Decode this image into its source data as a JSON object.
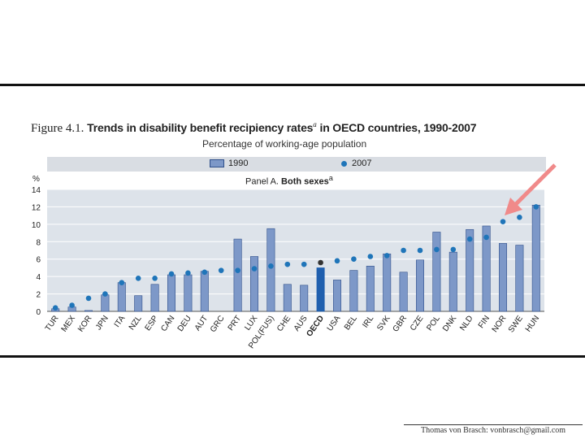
{
  "figure": {
    "label": "Figure 4.1.",
    "title": "Trends in disability benefit recipiency rates",
    "title_note": "a",
    "title_suffix": "in OECD countries, 1990-2007",
    "subtitle": "Percentage of working-age population"
  },
  "legend": {
    "series_1990": "1990",
    "series_2007": "2007"
  },
  "panel": {
    "prefix": "Panel A.",
    "name": "Both sexes",
    "note": "a"
  },
  "axis": {
    "unit": "%"
  },
  "footer": {
    "credit": "Thomas von Brasch: vonbrasch@gmail.com"
  },
  "colors": {
    "bar_1990": "#7d98c8",
    "bar_1990_border": "#2f4f8a",
    "bar_oecd": "#1f5fae",
    "dot_2007": "#1f75b9",
    "dot_oecd": "#333333",
    "plot_bg": "#dde3ea",
    "highlight_arrow": "#f08a8a"
  },
  "chart_data": {
    "type": "bar",
    "title": "Trends in disability benefit recipiency rates in OECD countries, 1990-2007",
    "ylabel": "%",
    "ylim": [
      0,
      14
    ],
    "yticks": [
      0,
      2,
      4,
      6,
      8,
      10,
      12,
      14
    ],
    "grid": true,
    "categories": [
      "TUR",
      "MEX",
      "KOR",
      "JPN",
      "ITA",
      "NZL",
      "ESP",
      "CAN",
      "DEU",
      "AUT",
      "GRC",
      "PRT",
      "LUX",
      "POL(FUS)",
      "CHE",
      "AUS",
      "OECD",
      "USA",
      "BEL",
      "IRL",
      "SVK",
      "GBR",
      "CZE",
      "POL",
      "DNK",
      "NLD",
      "FIN",
      "NOR",
      "SWE",
      "HUN"
    ],
    "series": [
      {
        "name": "1990",
        "kind": "bar",
        "values": [
          0.3,
          0.5,
          0.1,
          1.9,
          3.3,
          1.8,
          3.1,
          4.2,
          4.2,
          4.6,
          null,
          8.3,
          6.3,
          9.5,
          3.1,
          3.0,
          5.0,
          3.6,
          4.7,
          5.2,
          6.6,
          4.5,
          5.9,
          9.1,
          6.8,
          9.4,
          9.8,
          7.8,
          7.6,
          12.2
        ]
      },
      {
        "name": "2007",
        "kind": "marker",
        "values": [
          0.4,
          0.7,
          1.5,
          2.0,
          3.3,
          3.8,
          3.8,
          4.3,
          4.4,
          4.5,
          4.7,
          4.7,
          4.9,
          5.2,
          5.4,
          5.4,
          5.6,
          5.8,
          6.0,
          6.3,
          6.4,
          7.0,
          7.0,
          7.1,
          7.1,
          8.3,
          8.5,
          10.3,
          10.8,
          12.0
        ]
      }
    ],
    "highlight": "OECD"
  }
}
